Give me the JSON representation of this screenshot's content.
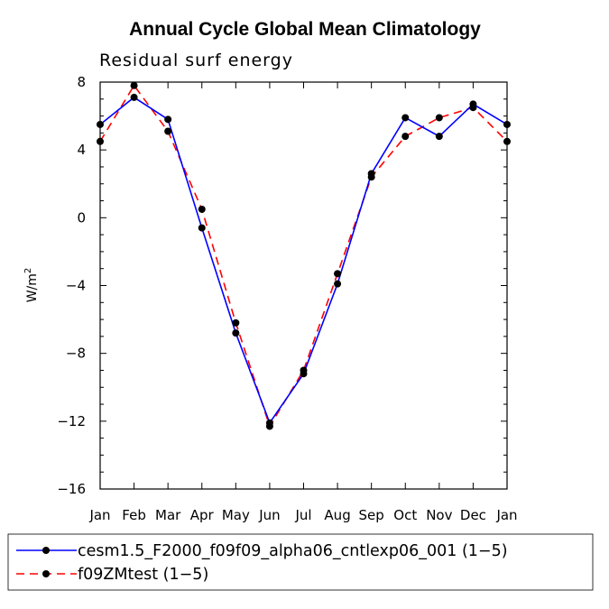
{
  "chart_data": {
    "type": "line",
    "title": "Annual Cycle Global Mean Climatology",
    "subtitle": "Residual surf energy",
    "ylabel": "W/m",
    "ylabel_sup": "2",
    "categories": [
      "Jan",
      "Feb",
      "Mar",
      "Apr",
      "May",
      "Jun",
      "Jul",
      "Aug",
      "Sep",
      "Oct",
      "Nov",
      "Dec",
      "Jan"
    ],
    "ylim": [
      -16,
      8
    ],
    "yticks": [
      8,
      4,
      0,
      -4,
      -8,
      -12,
      -16
    ],
    "ytick_labels": [
      "8",
      "4",
      "0",
      "−4",
      "−8",
      "−12",
      "−16"
    ],
    "series": [
      {
        "name": "cesm1.5_F2000_f09f09_alpha06_cntlexp06_001 (1−5)",
        "color": "#0000ff",
        "dash": "solid",
        "values": [
          5.5,
          7.1,
          5.8,
          -0.6,
          -6.8,
          -12.1,
          -9.2,
          -3.9,
          2.6,
          5.9,
          4.8,
          6.7,
          5.5
        ]
      },
      {
        "name": "f09ZMtest (1−5)",
        "color": "#ff0000",
        "dash": "dashed",
        "values": [
          4.5,
          7.8,
          5.1,
          0.5,
          -6.2,
          -12.3,
          -9.0,
          -3.3,
          2.4,
          4.8,
          5.9,
          6.5,
          4.5
        ]
      }
    ]
  }
}
